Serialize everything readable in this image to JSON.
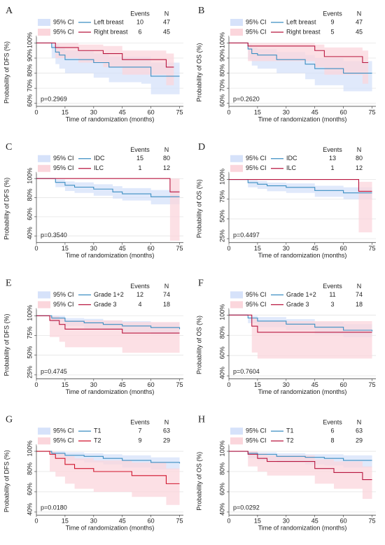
{
  "chart_data": [
    {
      "type": "km",
      "panel": "A",
      "ylabel": "Probability of DFS (%)",
      "xlabel": "Time of randomization (months)",
      "p_value": "p=0.2969",
      "events_header": "Events",
      "n_header": "N",
      "xlim": [
        0,
        77
      ],
      "xticks": [
        0,
        15,
        30,
        45,
        60,
        75
      ],
      "ylim": [
        58,
        103
      ],
      "yticks": [
        {
          "value": 60,
          "label": "60%"
        },
        {
          "value": 70,
          "label": "70%"
        },
        {
          "value": 80,
          "label": "80%"
        },
        {
          "value": 90,
          "label": "90%"
        },
        {
          "value": 100,
          "label": "100%"
        }
      ],
      "grid": true,
      "series": [
        {
          "name": "Left breast",
          "ci_label": "95% CI",
          "color": "#3b8ec2",
          "ci_color": "#d6e2fa",
          "events": 10,
          "n": 47,
          "x": [
            0,
            8,
            10,
            12,
            15,
            20,
            30,
            38,
            45,
            55,
            60,
            75
          ],
          "values": [
            100,
            97,
            94,
            92,
            89,
            89,
            87,
            84,
            84,
            84,
            78,
            78
          ],
          "ci_lower": [
            100,
            90,
            86,
            83,
            80,
            80,
            77,
            74,
            74,
            73,
            66,
            66
          ],
          "ci_upper": [
            100,
            100,
            99,
            97,
            95,
            95,
            93,
            91,
            91,
            91,
            87,
            87
          ]
        },
        {
          "name": "Right breast",
          "ci_label": "95% CI",
          "color": "#b8163f",
          "ci_color": "#fbd6dc",
          "events": 6,
          "n": 45,
          "x": [
            0,
            10,
            15,
            22,
            35,
            45,
            60,
            68,
            72
          ],
          "values": [
            100,
            97,
            97,
            95,
            93,
            89,
            89,
            84,
            84
          ],
          "ci_lower": [
            100,
            90,
            90,
            87,
            84,
            79,
            79,
            72,
            72
          ],
          "ci_upper": [
            100,
            100,
            100,
            99,
            98,
            95,
            95,
            93,
            93
          ]
        }
      ]
    },
    {
      "type": "km",
      "panel": "B",
      "ylabel": "Probability of OS (%)",
      "xlabel": "Time of randomization (months)",
      "p_value": "p=0.2620",
      "events_header": "Events",
      "n_header": "N",
      "xlim": [
        0,
        77
      ],
      "xticks": [
        0,
        15,
        30,
        45,
        60,
        75
      ],
      "ylim": [
        58,
        103
      ],
      "yticks": [
        {
          "value": 60,
          "label": "60%"
        },
        {
          "value": 70,
          "label": "70%"
        },
        {
          "value": 80,
          "label": "80%"
        },
        {
          "value": 90,
          "label": "90%"
        },
        {
          "value": 100,
          "label": "100%"
        }
      ],
      "grid": true,
      "series": [
        {
          "name": "Left breast",
          "ci_label": "95% CI",
          "color": "#3b8ec2",
          "ci_color": "#d6e2fa",
          "events": 9,
          "n": 47,
          "x": [
            0,
            10,
            12,
            15,
            25,
            35,
            40,
            45,
            55,
            60,
            75
          ],
          "values": [
            100,
            96,
            93,
            92,
            89,
            89,
            86,
            83,
            83,
            80,
            80
          ],
          "ci_lower": [
            100,
            89,
            85,
            83,
            80,
            80,
            76,
            72,
            72,
            68,
            68
          ],
          "ci_upper": [
            100,
            99,
            97,
            96,
            94,
            94,
            92,
            90,
            90,
            88,
            88
          ]
        },
        {
          "name": "Right breast",
          "ci_label": "95% CI",
          "color": "#b8163f",
          "ci_color": "#fbd6dc",
          "events": 5,
          "n": 45,
          "x": [
            0,
            10,
            15,
            30,
            45,
            50,
            60,
            70,
            73
          ],
          "values": [
            100,
            98,
            98,
            98,
            95,
            91,
            91,
            87,
            87
          ],
          "ci_lower": [
            100,
            88,
            88,
            88,
            84,
            79,
            79,
            73,
            73
          ],
          "ci_upper": [
            100,
            100,
            100,
            100,
            99,
            97,
            97,
            95,
            95
          ]
        }
      ]
    },
    {
      "type": "km",
      "panel": "C",
      "ylabel": "Probability of DFS (%)",
      "xlabel": "Time of randomization (months)",
      "p_value": "p=0.3540",
      "events_header": "Events",
      "n_header": "N",
      "xlim": [
        0,
        77
      ],
      "xticks": [
        0,
        15,
        30,
        45,
        60,
        75
      ],
      "ylim": [
        33,
        104
      ],
      "yticks": [
        {
          "value": 40,
          "label": "40%"
        },
        {
          "value": 60,
          "label": "60%"
        },
        {
          "value": 80,
          "label": "80%"
        },
        {
          "value": 100,
          "label": "100%"
        }
      ],
      "grid": true,
      "series": [
        {
          "name": "IDC",
          "ci_label": "95% CI",
          "color": "#3b8ec2",
          "ci_color": "#d6e2fa",
          "events": 15,
          "n": 80,
          "x": [
            0,
            10,
            15,
            20,
            30,
            40,
            45,
            60,
            75
          ],
          "values": [
            100,
            96,
            93,
            91,
            89,
            86,
            84,
            81,
            81
          ],
          "ci_lower": [
            100,
            91,
            87,
            85,
            82,
            79,
            77,
            73,
            73
          ],
          "ci_upper": [
            100,
            99,
            97,
            96,
            94,
            92,
            90,
            88,
            88
          ]
        },
        {
          "name": "ILC",
          "ci_label": "95% CI",
          "color": "#b8163f",
          "ci_color": "#fbd6dc",
          "events": 1,
          "n": 12,
          "x": [
            0,
            68,
            70,
            75
          ],
          "values": [
            100,
            100,
            86,
            86
          ],
          "ci_lower": [
            100,
            100,
            35,
            35
          ],
          "ci_upper": [
            100,
            100,
            100,
            100
          ]
        }
      ]
    },
    {
      "type": "km",
      "panel": "D",
      "ylabel": "Probability of OS (%)",
      "xlabel": "Time of randomization (months)",
      "p_value": "p=0.4497",
      "events_header": "Events",
      "n_header": "N",
      "xlim": [
        0,
        77
      ],
      "xticks": [
        0,
        15,
        30,
        45,
        60,
        75
      ],
      "ylim": [
        20,
        106
      ],
      "yticks": [
        {
          "value": 25,
          "label": "25%"
        },
        {
          "value": 50,
          "label": "50%"
        },
        {
          "value": 75,
          "label": "75%"
        },
        {
          "value": 100,
          "label": "100%"
        }
      ],
      "grid": true,
      "series": [
        {
          "name": "IDC",
          "ci_label": "95% CI",
          "color": "#3b8ec2",
          "ci_color": "#d6e2fa",
          "events": 13,
          "n": 80,
          "x": [
            0,
            10,
            15,
            20,
            30,
            45,
            60,
            75
          ],
          "values": [
            100,
            96,
            94,
            92,
            90,
            86,
            83,
            83
          ],
          "ci_lower": [
            100,
            90,
            88,
            85,
            83,
            78,
            75,
            75
          ],
          "ci_upper": [
            100,
            99,
            98,
            96,
            95,
            92,
            90,
            90
          ]
        },
        {
          "name": "ILC",
          "ci_label": "95% CI",
          "color": "#b8163f",
          "ci_color": "#fbd6dc",
          "events": 1,
          "n": 12,
          "x": [
            0,
            68,
            75
          ],
          "values": [
            100,
            85,
            85
          ],
          "ci_lower": [
            100,
            33,
            33
          ],
          "ci_upper": [
            100,
            97,
            97
          ]
        }
      ]
    },
    {
      "type": "km",
      "panel": "E",
      "ylabel": "Probability of DFS (%)",
      "xlabel": "Time of randomization (months)",
      "p_value": "p=0.4745",
      "events_header": "Events",
      "n_header": "N",
      "xlim": [
        0,
        77
      ],
      "xticks": [
        0,
        15,
        30,
        45,
        60,
        75
      ],
      "ylim": [
        20,
        106
      ],
      "yticks": [
        {
          "value": 25,
          "label": "25%"
        },
        {
          "value": 50,
          "label": "50%"
        },
        {
          "value": 75,
          "label": "75%"
        },
        {
          "value": 100,
          "label": "100%"
        }
      ],
      "grid": true,
      "series": [
        {
          "name": "Grade 1+2",
          "ci_label": "95% CI",
          "color": "#3b8ec2",
          "ci_color": "#d6e2fa",
          "events": 12,
          "n": 74,
          "x": [
            0,
            8,
            15,
            25,
            35,
            45,
            60,
            75
          ],
          "values": [
            100,
            97,
            93,
            91,
            89,
            87,
            85,
            83
          ],
          "ci_lower": [
            100,
            92,
            87,
            84,
            82,
            79,
            77,
            74
          ],
          "ci_upper": [
            100,
            100,
            97,
            96,
            94,
            93,
            91,
            90
          ]
        },
        {
          "name": "Grade 3",
          "ci_label": "95% CI",
          "color": "#b8163f",
          "ci_color": "#fbd6dc",
          "events": 4,
          "n": 18,
          "x": [
            0,
            7,
            12,
            15,
            45,
            75
          ],
          "values": [
            100,
            94,
            89,
            83,
            78,
            78
          ],
          "ci_lower": [
            100,
            73,
            67,
            60,
            53,
            53
          ],
          "ci_upper": [
            100,
            99,
            97,
            94,
            92,
            92
          ]
        }
      ]
    },
    {
      "type": "km",
      "panel": "F",
      "ylabel": "Probability of OS (%)",
      "xlabel": "Time of randomization (months)",
      "p_value": "p=0.7604",
      "events_header": "Events",
      "n_header": "N",
      "xlim": [
        0,
        77
      ],
      "xticks": [
        0,
        15,
        30,
        45,
        60,
        75
      ],
      "ylim": [
        37,
        104
      ],
      "yticks": [
        {
          "value": 40,
          "label": "40%"
        },
        {
          "value": 60,
          "label": "60%"
        },
        {
          "value": 80,
          "label": "80%"
        },
        {
          "value": 100,
          "label": "100%"
        }
      ],
      "grid": true,
      "series": [
        {
          "name": "Grade 1+2",
          "ci_label": "95% CI",
          "color": "#3b8ec2",
          "ci_color": "#d6e2fa",
          "events": 11,
          "n": 74,
          "x": [
            0,
            10,
            15,
            30,
            45,
            60,
            75
          ],
          "values": [
            100,
            97,
            94,
            91,
            88,
            85,
            84
          ],
          "ci_lower": [
            100,
            92,
            88,
            85,
            81,
            78,
            77
          ],
          "ci_upper": [
            100,
            99,
            98,
            96,
            93,
            91,
            90
          ]
        },
        {
          "name": "Grade 3",
          "ci_label": "95% CI",
          "color": "#b8163f",
          "ci_color": "#fbd6dc",
          "events": 3,
          "n": 18,
          "x": [
            0,
            12,
            15,
            75
          ],
          "values": [
            100,
            89,
            83,
            83
          ],
          "ci_lower": [
            100,
            63,
            57,
            57
          ],
          "ci_upper": [
            100,
            97,
            94,
            94
          ]
        }
      ]
    },
    {
      "type": "km",
      "panel": "G",
      "ylabel": "Probability of DFS (%)",
      "xlabel": "Time of randomization (months)",
      "p_value": "p=0.0180",
      "events_header": "Events",
      "n_header": "N",
      "xlim": [
        0,
        77
      ],
      "xticks": [
        0,
        15,
        30,
        45,
        60,
        75
      ],
      "ylim": [
        37,
        104
      ],
      "yticks": [
        {
          "value": 40,
          "label": "40%"
        },
        {
          "value": 60,
          "label": "60%"
        },
        {
          "value": 80,
          "label": "80%"
        },
        {
          "value": 100,
          "label": "100%"
        }
      ],
      "grid": true,
      "series": [
        {
          "name": "T1",
          "ci_label": "95% CI",
          "color": "#3b8ec2",
          "ci_color": "#d6e2fa",
          "events": 7,
          "n": 63,
          "x": [
            0,
            8,
            15,
            25,
            35,
            45,
            60,
            75
          ],
          "values": [
            100,
            98,
            96,
            95,
            93,
            91,
            89,
            88
          ],
          "ci_lower": [
            100,
            94,
            91,
            89,
            87,
            84,
            82,
            81
          ],
          "ci_upper": [
            100,
            100,
            99,
            98,
            97,
            96,
            94,
            93
          ]
        },
        {
          "name": "T2",
          "ci_label": "95% CI",
          "color": "#d0132b",
          "ci_color": "#fbd6dc",
          "events": 9,
          "n": 29,
          "x": [
            0,
            7,
            10,
            15,
            20,
            30,
            45,
            50,
            68,
            75
          ],
          "values": [
            100,
            97,
            93,
            87,
            83,
            80,
            80,
            76,
            68,
            68
          ],
          "ci_lower": [
            100,
            80,
            75,
            68,
            63,
            60,
            60,
            55,
            47,
            47
          ],
          "ci_upper": [
            100,
            100,
            98,
            95,
            93,
            91,
            91,
            89,
            83,
            83
          ]
        }
      ]
    },
    {
      "type": "km",
      "panel": "H",
      "ylabel": "Probability of OS (%)",
      "xlabel": "Time of randomization (months)",
      "p_value": "p=0.0292",
      "events_header": "Events",
      "n_header": "N",
      "xlim": [
        0,
        77
      ],
      "xticks": [
        0,
        15,
        30,
        45,
        60,
        75
      ],
      "ylim": [
        37,
        104
      ],
      "yticks": [
        {
          "value": 40,
          "label": "40%"
        },
        {
          "value": 60,
          "label": "60%"
        },
        {
          "value": 80,
          "label": "80%"
        },
        {
          "value": 100,
          "label": "100%"
        }
      ],
      "grid": true,
      "series": [
        {
          "name": "T1",
          "ci_label": "95% CI",
          "color": "#3b8ec2",
          "ci_color": "#d6e2fa",
          "events": 6,
          "n": 63,
          "x": [
            0,
            10,
            15,
            25,
            40,
            50,
            60,
            75
          ],
          "values": [
            100,
            98,
            97,
            95,
            94,
            93,
            91,
            91
          ],
          "ci_lower": [
            100,
            93,
            91,
            89,
            87,
            86,
            84,
            84
          ],
          "ci_upper": [
            100,
            100,
            99,
            98,
            97,
            97,
            96,
            96
          ]
        },
        {
          "name": "T2",
          "ci_label": "95% CI",
          "color": "#b8163f",
          "ci_color": "#fbd6dc",
          "events": 8,
          "n": 29,
          "x": [
            0,
            10,
            15,
            20,
            35,
            45,
            55,
            70,
            75
          ],
          "values": [
            100,
            97,
            93,
            90,
            90,
            83,
            79,
            72,
            72
          ],
          "ci_lower": [
            100,
            85,
            80,
            76,
            76,
            68,
            63,
            53,
            53
          ],
          "ci_upper": [
            100,
            100,
            98,
            96,
            96,
            92,
            90,
            85,
            85
          ]
        }
      ]
    }
  ]
}
